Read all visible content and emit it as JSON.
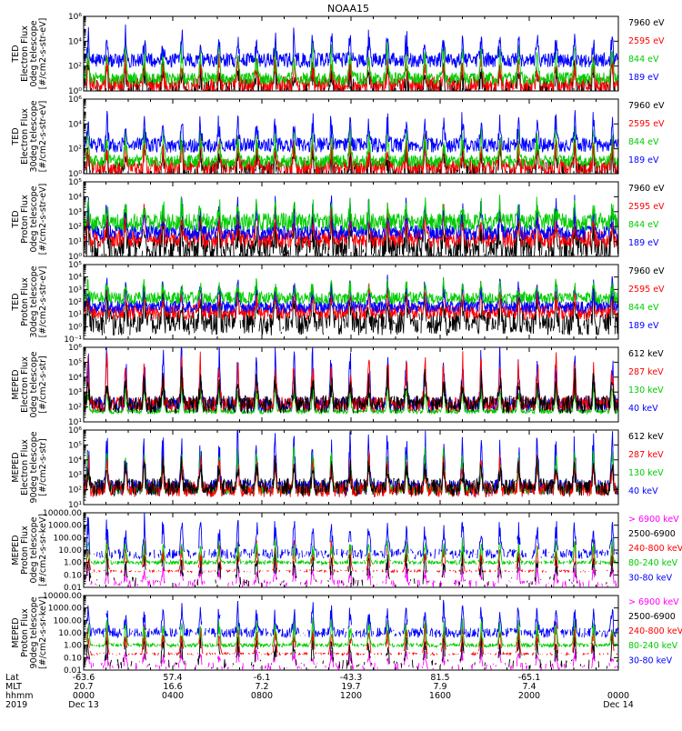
{
  "title": "NOAA15",
  "colors": {
    "blue": "#0000ff",
    "red": "#ff0000",
    "green": "#00cc00",
    "black": "#000000",
    "magenta": "#ff00ff",
    "axis": "#000000"
  },
  "chart_data": [
    {
      "type": "line",
      "ylabel": [
        "TED",
        "Electron Flux",
        "0deg telescope",
        "[#/cm2-s-str-eV]"
      ],
      "ylog": true,
      "ylim": [
        1,
        1000000
      ],
      "yticks": [
        {
          "v": 1,
          "t": "10⁰"
        },
        {
          "v": 100,
          "t": "10²"
        },
        {
          "v": 10000,
          "t": "10⁴"
        },
        {
          "v": 1000000,
          "t": "10⁶"
        }
      ],
      "series": [
        {
          "name": "7960 eV",
          "color": "black",
          "base": 1.5,
          "spread": 0.9,
          "peak": 80,
          "gap": 0.3
        },
        {
          "name": "2595 eV",
          "color": "red",
          "base": 3,
          "spread": 0.7,
          "peak": 300,
          "gap": 0
        },
        {
          "name": "844 eV",
          "color": "green",
          "base": 10,
          "spread": 0.5,
          "peak": 3000,
          "gap": 0
        },
        {
          "name": "189 eV",
          "color": "blue",
          "base": 300,
          "spread": 0.6,
          "peak": 30000,
          "gap": 0
        }
      ]
    },
    {
      "type": "line",
      "ylabel": [
        "TED",
        "Electron Flux",
        "30deg telescope",
        "[#/cm2-s-str-eV]"
      ],
      "ylog": true,
      "ylim": [
        1,
        1000000
      ],
      "yticks": [
        {
          "v": 1,
          "t": "10⁰"
        },
        {
          "v": 100,
          "t": "10²"
        },
        {
          "v": 10000,
          "t": "10⁴"
        },
        {
          "v": 1000000,
          "t": "10⁶"
        }
      ],
      "series": [
        {
          "name": "7960 eV",
          "color": "black",
          "base": 1.5,
          "spread": 0.9,
          "peak": 80,
          "gap": 0.3
        },
        {
          "name": "2595 eV",
          "color": "red",
          "base": 3,
          "spread": 0.7,
          "peak": 300,
          "gap": 0
        },
        {
          "name": "844 eV",
          "color": "green",
          "base": 10,
          "spread": 0.5,
          "peak": 3000,
          "gap": 0
        },
        {
          "name": "189 eV",
          "color": "blue",
          "base": 200,
          "spread": 0.6,
          "peak": 30000,
          "gap": 0
        }
      ]
    },
    {
      "type": "line",
      "ylabel": [
        "TED",
        "Proton Flux",
        "0deg telescope",
        "[#/cm2-s-str-eV]"
      ],
      "ylog": true,
      "ylim": [
        1,
        100000
      ],
      "yticks": [
        {
          "v": 1,
          "t": "10⁰"
        },
        {
          "v": 10,
          "t": "10¹"
        },
        {
          "v": 100,
          "t": "10²"
        },
        {
          "v": 1000,
          "t": "10³"
        },
        {
          "v": 10000,
          "t": "10⁴"
        },
        {
          "v": 100000,
          "t": "10⁵"
        }
      ],
      "series": [
        {
          "name": "7960 eV",
          "color": "black",
          "base": 3,
          "spread": 1.0,
          "peak": 300,
          "gap": 0.1
        },
        {
          "name": "2595 eV",
          "color": "red",
          "base": 15,
          "spread": 0.6,
          "peak": 1000,
          "gap": 0
        },
        {
          "name": "189 eV",
          "color": "blue",
          "base": 40,
          "spread": 0.5,
          "peak": 3000,
          "gap": 0
        },
        {
          "name": "844 eV",
          "color": "green",
          "base": 200,
          "spread": 0.6,
          "peak": 3000,
          "gap": 0
        }
      ]
    },
    {
      "type": "line",
      "ylabel": [
        "TED",
        "Proton Flux",
        "30deg telescope",
        "[#/cm2-s-str-eV]"
      ],
      "ylog": true,
      "ylim": [
        0.1,
        100000
      ],
      "yticks": [
        {
          "v": 0.1,
          "t": "10⁻¹"
        },
        {
          "v": 1,
          "t": "10⁰"
        },
        {
          "v": 10,
          "t": "10¹"
        },
        {
          "v": 100,
          "t": "10²"
        },
        {
          "v": 1000,
          "t": "10³"
        },
        {
          "v": 10000,
          "t": "10⁴"
        },
        {
          "v": 100000,
          "t": "10⁵"
        }
      ],
      "series": [
        {
          "name": "7960 eV",
          "color": "black",
          "base": 2,
          "spread": 1.0,
          "peak": 300,
          "gap": 0.1
        },
        {
          "name": "2595 eV",
          "color": "red",
          "base": 15,
          "spread": 0.6,
          "peak": 1000,
          "gap": 0
        },
        {
          "name": "189 eV",
          "color": "blue",
          "base": 40,
          "spread": 0.5,
          "peak": 3000,
          "gap": 0
        },
        {
          "name": "844 eV",
          "color": "green",
          "base": 200,
          "spread": 0.5,
          "peak": 3000,
          "gap": 0
        }
      ]
    },
    {
      "type": "line",
      "ylabel": [
        "MEPED",
        "Electron Flux",
        "0deg telescope",
        "[#/cm2-s-str]"
      ],
      "ylog": true,
      "ylim": [
        10,
        1000000
      ],
      "yticks": [
        {
          "v": 10,
          "t": "10¹"
        },
        {
          "v": 100,
          "t": "10²"
        },
        {
          "v": 1000,
          "t": "10³"
        },
        {
          "v": 10000,
          "t": "10⁴"
        },
        {
          "v": 100000,
          "t": "10⁵"
        },
        {
          "v": 1000000,
          "t": "10⁶"
        }
      ],
      "series": [
        {
          "name": "40 keV",
          "color": "blue",
          "base": 150,
          "spread": 0.5,
          "peak": 300000,
          "gap": 0
        },
        {
          "name": "130 keV",
          "color": "green",
          "base": 50,
          "spread": 0.15,
          "peak": 3000,
          "gap": 0
        },
        {
          "name": "287 keV",
          "color": "red",
          "base": 150,
          "spread": 0.5,
          "peak": 100000,
          "gap": 0
        },
        {
          "name": "612 keV",
          "color": "black",
          "base": 150,
          "spread": 0.6,
          "peak": 10000,
          "gap": 0.1
        }
      ]
    },
    {
      "type": "line",
      "ylabel": [
        "MEPED",
        "Electron Flux",
        "90deg telescope",
        "[#/cm2-s-str]"
      ],
      "ylog": true,
      "ylim": [
        10,
        1000000
      ],
      "yticks": [
        {
          "v": 10,
          "t": "10¹"
        },
        {
          "v": 100,
          "t": "10²"
        },
        {
          "v": 1000,
          "t": "10³"
        },
        {
          "v": 10000,
          "t": "10⁴"
        },
        {
          "v": 100000,
          "t": "10⁵"
        },
        {
          "v": 1000000,
          "t": "10⁶"
        }
      ],
      "series": [
        {
          "name": "40 keV",
          "color": "blue",
          "base": 150,
          "spread": 0.5,
          "peak": 300000,
          "gap": 0
        },
        {
          "name": "130 keV",
          "color": "green",
          "base": 100,
          "spread": 0.3,
          "peak": 30000,
          "gap": 0
        },
        {
          "name": "287 keV",
          "color": "red",
          "base": 100,
          "spread": 0.5,
          "peak": 10000,
          "gap": 0
        },
        {
          "name": "612 keV",
          "color": "black",
          "base": 150,
          "spread": 0.6,
          "peak": 5000,
          "gap": 0.1
        }
      ]
    },
    {
      "type": "line",
      "ylabel": [
        "MEPED",
        "Proton Flux",
        "0deg telescope",
        "[#/cm2-s-sr-keV]"
      ],
      "ylog": true,
      "ylim": [
        0.01,
        10000
      ],
      "yticks": [
        {
          "v": 0.01,
          "t": "0.01"
        },
        {
          "v": 0.1,
          "t": "0.10"
        },
        {
          "v": 1,
          "t": "1.00"
        },
        {
          "v": 10,
          "t": "10.00"
        },
        {
          "v": 100,
          "t": "100.00"
        },
        {
          "v": 1000,
          "t": "1000.00"
        },
        {
          "v": 10000,
          "t": "10000.00"
        }
      ],
      "series": [
        {
          "name": "> 6900 keV",
          "color": "magenta",
          "base": 0.02,
          "spread": 0.3,
          "peak": 0.3,
          "gap": 0.55
        },
        {
          "name": "2500-6900",
          "color": "black",
          "base": 0.03,
          "spread": 0.4,
          "peak": 3,
          "gap": 0.7
        },
        {
          "name": "240-800 keV",
          "color": "red",
          "base": 0.2,
          "spread": 0.1,
          "peak": 30,
          "gap": 0.45
        },
        {
          "name": "80-240 keV",
          "color": "green",
          "base": 1,
          "spread": 0.15,
          "peak": 50,
          "gap": 0.1
        },
        {
          "name": "30-80 keV",
          "color": "blue",
          "base": 5,
          "spread": 0.4,
          "peak": 2000,
          "gap": 0.3
        }
      ]
    },
    {
      "type": "line",
      "ylabel": [
        "MEPED",
        "Proton Flux",
        "90deg telescope",
        "[#/cm2-s-sr-keV]"
      ],
      "ylog": true,
      "ylim": [
        0.01,
        10000
      ],
      "yticks": [
        {
          "v": 0.01,
          "t": "0.01"
        },
        {
          "v": 0.1,
          "t": "0.10"
        },
        {
          "v": 1,
          "t": "1.00"
        },
        {
          "v": 10,
          "t": "10.00"
        },
        {
          "v": 100,
          "t": "100.00"
        },
        {
          "v": 1000,
          "t": "1000.00"
        },
        {
          "v": 10000,
          "t": "10000.00"
        }
      ],
      "series": [
        {
          "name": "> 6900 keV",
          "color": "magenta",
          "base": 0.02,
          "spread": 0.3,
          "peak": 0.3,
          "gap": 0.55
        },
        {
          "name": "2500-6900",
          "color": "black",
          "base": 0.03,
          "spread": 0.4,
          "peak": 3,
          "gap": 0.7
        },
        {
          "name": "240-800 keV",
          "color": "red",
          "base": 0.2,
          "spread": 0.1,
          "peak": 30,
          "gap": 0.4
        },
        {
          "name": "80-240 keV",
          "color": "green",
          "base": 1,
          "spread": 0.15,
          "peak": 80,
          "gap": 0.1
        },
        {
          "name": "30-80 keV",
          "color": "blue",
          "base": 10,
          "spread": 0.4,
          "peak": 1000,
          "gap": 0.2
        }
      ]
    }
  ],
  "x_axis": {
    "row_labels": [
      "Lat",
      "MLT",
      "hhmm",
      "2019"
    ],
    "ticks": [
      {
        "hour": 0,
        "lat": "-63.6",
        "mlt": "20.7",
        "hhmm": "0000",
        "date": "Dec 13"
      },
      {
        "hour": 4,
        "lat": "57.4",
        "mlt": "16.6",
        "hhmm": "0400",
        "date": ""
      },
      {
        "hour": 8,
        "lat": "-6.1",
        "mlt": "7.2",
        "hhmm": "0800",
        "date": ""
      },
      {
        "hour": 12,
        "lat": "-43.3",
        "mlt": "19.7",
        "hhmm": "1200",
        "date": ""
      },
      {
        "hour": 16,
        "lat": "81.5",
        "mlt": "7.9",
        "hhmm": "1600",
        "date": ""
      },
      {
        "hour": 20,
        "lat": "-65.1",
        "mlt": "7.4",
        "hhmm": "2000",
        "date": ""
      },
      {
        "hour": 24,
        "lat": "",
        "mlt": "",
        "hhmm": "0000",
        "date": "Dec 14"
      }
    ],
    "xlim": [
      0,
      24
    ]
  }
}
